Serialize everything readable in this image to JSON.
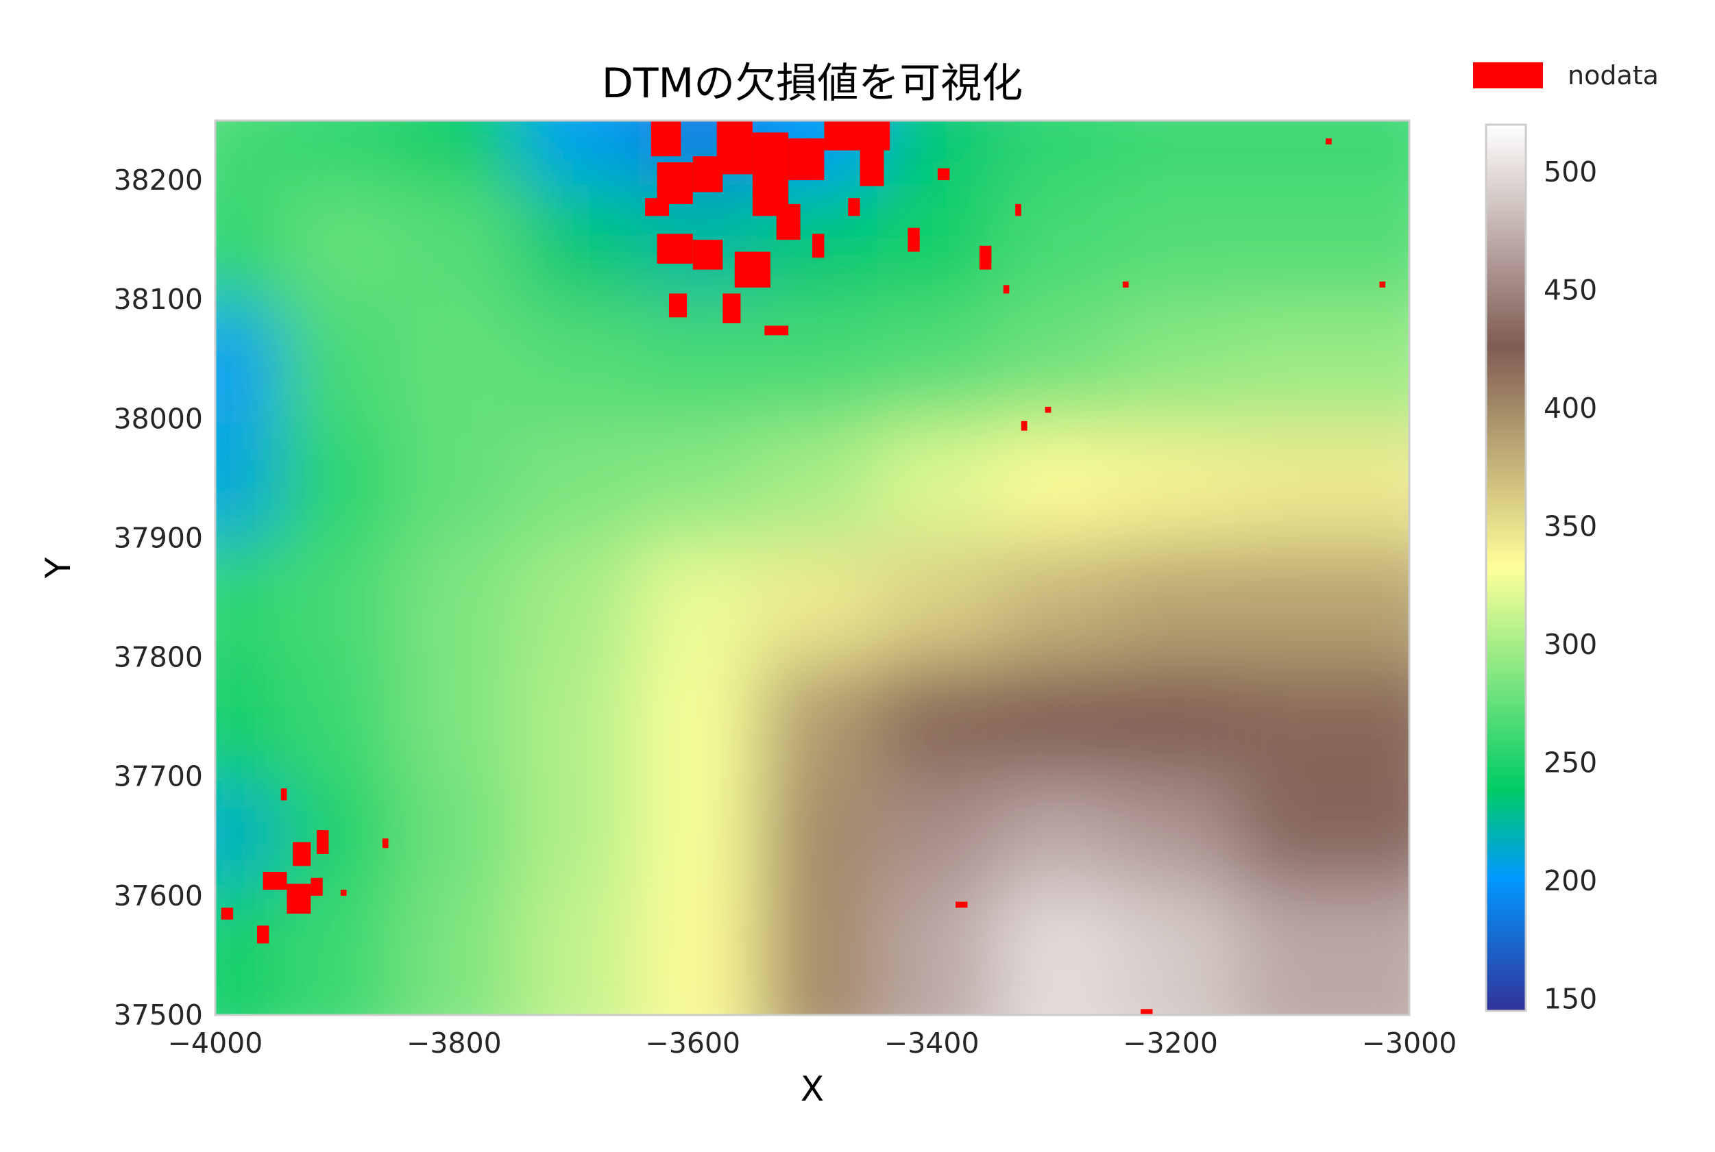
{
  "chart_data": {
    "type": "heatmap",
    "title": "DTMの欠損値を可視化",
    "xlabel": "X",
    "ylabel": "Y",
    "xlim": [
      -4000,
      -3000
    ],
    "ylim": [
      37500,
      38250
    ],
    "x_ticks": [
      -4000,
      -3800,
      -3600,
      -3400,
      -3200,
      -3000
    ],
    "x_tick_labels": [
      "−4000",
      "−3800",
      "−3600",
      "−3400",
      "−3200",
      "−3000"
    ],
    "y_ticks": [
      37500,
      37600,
      37700,
      37800,
      37900,
      38000,
      38100,
      38200
    ],
    "y_tick_labels": [
      "37500",
      "37600",
      "37700",
      "37800",
      "37900",
      "38000",
      "38100",
      "38200"
    ],
    "colormap": "terrain",
    "value_range": [
      145,
      520
    ],
    "colorbar_ticks": [
      150,
      200,
      250,
      300,
      350,
      400,
      450,
      500
    ],
    "colorbar_tick_labels": [
      "150",
      "200",
      "250",
      "300",
      "350",
      "400",
      "450",
      "500"
    ],
    "legend": {
      "label": "nodata",
      "color": "#ff0000",
      "placement": "top-right"
    },
    "grid": false,
    "elevation_grid": {
      "x": [
        -3950,
        -3850,
        -3750,
        -3650,
        -3550,
        -3450,
        -3350,
        -3250,
        -3150,
        -3050
      ],
      "y": [
        38200,
        38100,
        38000,
        37900,
        37800,
        37700,
        37600,
        37525
      ],
      "values": [
        [
          265,
          255,
          240,
          205,
          185,
          200,
          235,
          255,
          260,
          260
        ],
        [
          255,
          275,
          270,
          235,
          225,
          235,
          245,
          265,
          270,
          270
        ],
        [
          205,
          265,
          275,
          270,
          265,
          265,
          270,
          280,
          290,
          295
        ],
        [
          210,
          255,
          275,
          285,
          290,
          300,
          320,
          335,
          340,
          345
        ],
        [
          255,
          265,
          285,
          300,
          325,
          345,
          360,
          375,
          385,
          385
        ],
        [
          245,
          260,
          285,
          305,
          330,
          390,
          420,
          425,
          425,
          420
        ],
        [
          215,
          250,
          280,
          305,
          330,
          400,
          455,
          470,
          460,
          430
        ],
        [
          245,
          260,
          285,
          310,
          335,
          400,
          470,
          500,
          490,
          470
        ]
      ]
    },
    "nodata_regions": [
      {
        "x0": -3635,
        "x1": -3610,
        "y0": 38220,
        "y1": 38250
      },
      {
        "x0": -3630,
        "x1": -3600,
        "y0": 38180,
        "y1": 38215
      },
      {
        "x0": -3600,
        "x1": -3575,
        "y0": 38190,
        "y1": 38220
      },
      {
        "x0": -3580,
        "x1": -3550,
        "y0": 38205,
        "y1": 38250
      },
      {
        "x0": -3550,
        "x1": -3520,
        "y0": 38170,
        "y1": 38240
      },
      {
        "x0": -3520,
        "x1": -3490,
        "y0": 38200,
        "y1": 38235
      },
      {
        "x0": -3490,
        "x1": -3435,
        "y0": 38225,
        "y1": 38250
      },
      {
        "x0": -3460,
        "x1": -3440,
        "y0": 38195,
        "y1": 38225
      },
      {
        "x0": -3630,
        "x1": -3600,
        "y0": 38130,
        "y1": 38155
      },
      {
        "x0": -3600,
        "x1": -3575,
        "y0": 38125,
        "y1": 38150
      },
      {
        "x0": -3565,
        "x1": -3535,
        "y0": 38110,
        "y1": 38140
      },
      {
        "x0": -3620,
        "x1": -3605,
        "y0": 38085,
        "y1": 38105
      },
      {
        "x0": -3575,
        "x1": -3560,
        "y0": 38080,
        "y1": 38105
      },
      {
        "x0": -3640,
        "x1": -3620,
        "y0": 38170,
        "y1": 38185
      },
      {
        "x0": -3530,
        "x1": -3510,
        "y0": 38150,
        "y1": 38180
      },
      {
        "x0": -3500,
        "x1": -3490,
        "y0": 38135,
        "y1": 38155
      },
      {
        "x0": -3470,
        "x1": -3460,
        "y0": 38170,
        "y1": 38185
      },
      {
        "x0": -3420,
        "x1": -3410,
        "y0": 38140,
        "y1": 38160
      },
      {
        "x0": -3395,
        "x1": -3385,
        "y0": 38200,
        "y1": 38210
      },
      {
        "x0": -3360,
        "x1": -3350,
        "y0": 38125,
        "y1": 38145
      },
      {
        "x0": -3540,
        "x1": -3520,
        "y0": 38070,
        "y1": 38078
      },
      {
        "x0": -3330,
        "x1": -3325,
        "y0": 38170,
        "y1": 38180
      },
      {
        "x0": -3340,
        "x1": -3335,
        "y0": 38105,
        "y1": 38112
      },
      {
        "x0": -3240,
        "x1": -3235,
        "y0": 38110,
        "y1": 38115
      },
      {
        "x0": -3325,
        "x1": -3320,
        "y0": 37990,
        "y1": 37998
      },
      {
        "x0": -3305,
        "x1": -3300,
        "y0": 38005,
        "y1": 38010
      },
      {
        "x0": -3935,
        "x1": -3920,
        "y0": 37625,
        "y1": 37645
      },
      {
        "x0": -3915,
        "x1": -3905,
        "y0": 37635,
        "y1": 37655
      },
      {
        "x0": -3960,
        "x1": -3940,
        "y0": 37605,
        "y1": 37620
      },
      {
        "x0": -3940,
        "x1": -3920,
        "y0": 37585,
        "y1": 37610
      },
      {
        "x0": -3920,
        "x1": -3910,
        "y0": 37600,
        "y1": 37615
      },
      {
        "x0": -3995,
        "x1": -3985,
        "y0": 37580,
        "y1": 37590
      },
      {
        "x0": -3965,
        "x1": -3955,
        "y0": 37560,
        "y1": 37575
      },
      {
        "x0": -3945,
        "x1": -3940,
        "y0": 37680,
        "y1": 37690
      },
      {
        "x0": -3895,
        "x1": -3890,
        "y0": 37600,
        "y1": 37605
      },
      {
        "x0": -3380,
        "x1": -3370,
        "y0": 37590,
        "y1": 37595
      },
      {
        "x0": -3225,
        "x1": -3215,
        "y0": 37500,
        "y1": 37505
      },
      {
        "x0": -3070,
        "x1": -3065,
        "y0": 38230,
        "y1": 38235
      },
      {
        "x0": -3025,
        "x1": -3020,
        "y0": 38110,
        "y1": 38115
      },
      {
        "x0": -3860,
        "x1": -3855,
        "y0": 37640,
        "y1": 37648
      }
    ]
  }
}
